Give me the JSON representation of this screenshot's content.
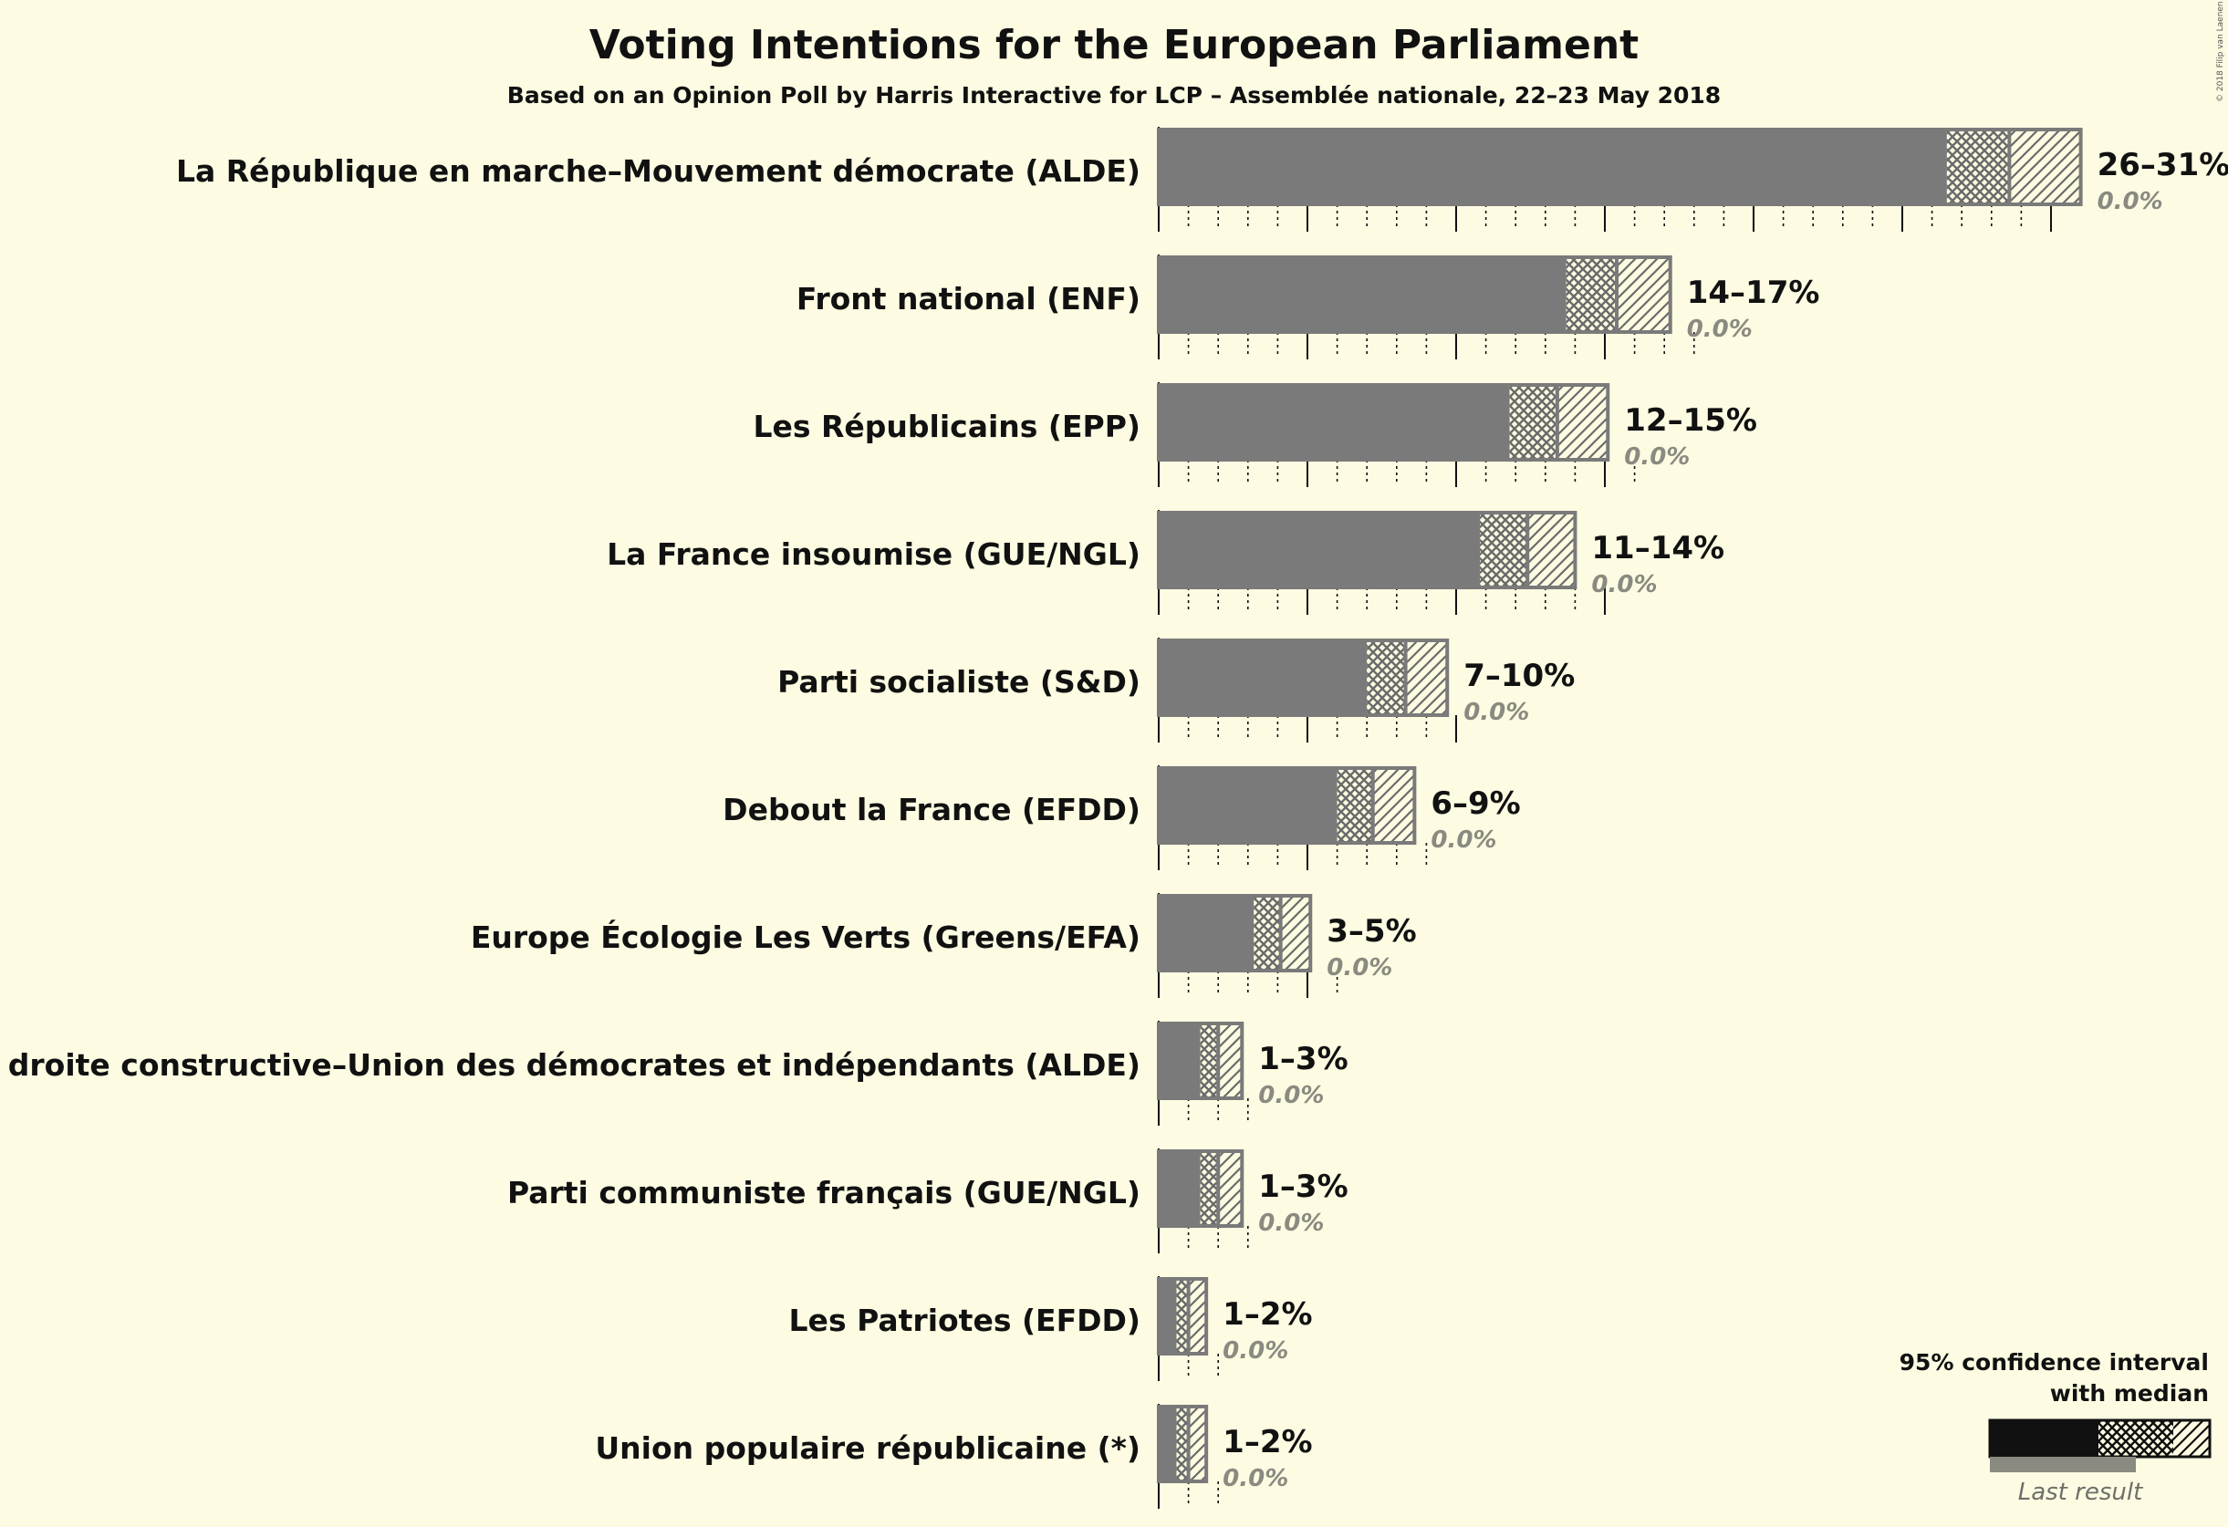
{
  "copyright": "© 2018 Filip van Laenen",
  "chart_data": {
    "type": "bar",
    "orientation": "horizontal",
    "title": "Voting Intentions for the European Parliament",
    "subtitle": "Based on an Opinion Poll by Harris Interactive for LCP – Assemblée nationale, 22–23 May 2018",
    "xlim": [
      0,
      31
    ],
    "grid": "vertical ticks every 1%, solid every 5%",
    "series_meaning": [
      "lower bound of 95% CI",
      "median",
      "upper bound of 95% CI"
    ],
    "parties": [
      {
        "name": "La République en marche–Mouvement démocrate (ALDE)",
        "low": 26.5,
        "median": 28.6,
        "high": 31.0,
        "range": "26–31%",
        "last_result": "0.0%"
      },
      {
        "name": "Front national (ENF)",
        "low": 13.7,
        "median": 15.4,
        "high": 17.2,
        "range": "14–17%",
        "last_result": "0.0%"
      },
      {
        "name": "Les Républicains (EPP)",
        "low": 11.8,
        "median": 13.4,
        "high": 15.1,
        "range": "12–15%",
        "last_result": "0.0%"
      },
      {
        "name": "La France insoumise (GUE/NGL)",
        "low": 10.8,
        "median": 12.4,
        "high": 14.0,
        "range": "11–14%",
        "last_result": "0.0%"
      },
      {
        "name": "Parti socialiste (S&D)",
        "low": 7.0,
        "median": 8.3,
        "high": 9.7,
        "range": "7–10%",
        "last_result": "0.0%"
      },
      {
        "name": "Debout la France (EFDD)",
        "low": 6.0,
        "median": 7.2,
        "high": 8.6,
        "range": "6–9%",
        "last_result": "0.0%"
      },
      {
        "name": "Europe Écologie Les Verts (Greens/EFA)",
        "low": 3.2,
        "median": 4.1,
        "high": 5.1,
        "range": "3–5%",
        "last_result": "0.0%"
      },
      {
        "name": "Agir, la droite constructive–Union des démocrates et indépendants (ALDE)",
        "low": 1.4,
        "median": 2.0,
        "high": 2.8,
        "range": "1–3%",
        "last_result": "0.0%"
      },
      {
        "name": "Parti communiste français (GUE/NGL)",
        "low": 1.4,
        "median": 2.0,
        "high": 2.8,
        "range": "1–3%",
        "last_result": "0.0%"
      },
      {
        "name": "Les Patriotes (EFDD)",
        "low": 0.6,
        "median": 1.0,
        "high": 1.6,
        "range": "1–2%",
        "last_result": "0.0%"
      },
      {
        "name": "Union populaire républicaine (*)",
        "low": 0.6,
        "median": 1.0,
        "high": 1.6,
        "range": "1–2%",
        "last_result": "0.0%"
      }
    ],
    "colors": {
      "bar": "#7a7a7a",
      "bar_outline": "#7a7a7a",
      "pattern": "#6b6b6b",
      "legend_bar": "#111111",
      "legend_last": "#8a8a80"
    }
  },
  "legend": {
    "line1": "95% confidence interval",
    "line2": "with median",
    "last_result": "Last result"
  }
}
